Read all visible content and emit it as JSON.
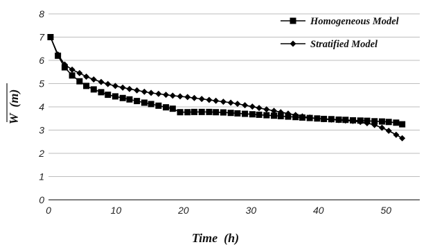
{
  "chart_data": {
    "type": "line",
    "title": "",
    "xlabel": "Time  (h)",
    "ylabel": "W  (m)",
    "xlim": [
      0,
      55
    ],
    "ylim": [
      0,
      8
    ],
    "x_ticks": [
      "0",
      "10",
      "20",
      "30",
      "40",
      "50"
    ],
    "y_ticks": [
      "0",
      "1",
      "2",
      "3",
      "4",
      "5",
      "6",
      "7",
      "8"
    ],
    "grid": "horizontal",
    "legend_position": "top-right",
    "series": [
      {
        "name": "Homogeneous Model",
        "marker": "square",
        "color": "#000000",
        "x": [
          0.3,
          1.4,
          2.4,
          3.5,
          4.6,
          5.6,
          6.7,
          7.8,
          8.8,
          9.9,
          11.0,
          12.0,
          13.1,
          14.2,
          15.2,
          16.3,
          17.4,
          18.4,
          19.5,
          20.6,
          21.6,
          22.7,
          23.8,
          24.8,
          25.9,
          27.0,
          28.0,
          29.1,
          30.2,
          31.2,
          32.3,
          33.4,
          34.4,
          35.5,
          36.6,
          37.6,
          38.7,
          39.8,
          40.8,
          41.9,
          43.0,
          44.0,
          45.1,
          46.2,
          47.2,
          48.3,
          49.4,
          50.4,
          51.5,
          52.4
        ],
        "y": [
          7.0,
          6.2,
          5.7,
          5.35,
          5.1,
          4.9,
          4.75,
          4.63,
          4.52,
          4.45,
          4.38,
          4.32,
          4.25,
          4.18,
          4.12,
          4.05,
          3.98,
          3.92,
          3.77,
          3.77,
          3.78,
          3.78,
          3.78,
          3.77,
          3.76,
          3.74,
          3.72,
          3.7,
          3.68,
          3.66,
          3.64,
          3.62,
          3.6,
          3.58,
          3.56,
          3.54,
          3.52,
          3.5,
          3.48,
          3.47,
          3.45,
          3.44,
          3.42,
          3.41,
          3.4,
          3.38,
          3.37,
          3.35,
          3.32,
          3.25
        ]
      },
      {
        "name": "Stratified Model",
        "marker": "diamond",
        "color": "#000000",
        "x": [
          0.3,
          1.4,
          2.4,
          3.5,
          4.6,
          5.6,
          6.7,
          7.8,
          8.8,
          9.9,
          11.0,
          12.0,
          13.1,
          14.2,
          15.2,
          16.3,
          17.4,
          18.4,
          19.5,
          20.6,
          21.6,
          22.7,
          23.8,
          24.8,
          25.9,
          27.0,
          28.0,
          29.1,
          30.2,
          31.2,
          32.3,
          33.4,
          34.4,
          35.5,
          36.6,
          37.6,
          38.7,
          39.8,
          40.8,
          41.9,
          43.0,
          44.0,
          45.1,
          46.2,
          47.2,
          48.3,
          49.4,
          50.4,
          51.5,
          52.4
        ],
        "y": [
          7.0,
          6.25,
          5.82,
          5.6,
          5.45,
          5.3,
          5.18,
          5.07,
          4.98,
          4.9,
          4.83,
          4.77,
          4.71,
          4.65,
          4.6,
          4.56,
          4.52,
          4.48,
          4.45,
          4.42,
          4.38,
          4.34,
          4.3,
          4.26,
          4.22,
          4.18,
          4.13,
          4.07,
          4.01,
          3.95,
          3.89,
          3.83,
          3.77,
          3.71,
          3.65,
          3.59,
          3.54,
          3.5,
          3.47,
          3.45,
          3.43,
          3.41,
          3.39,
          3.35,
          3.3,
          3.22,
          3.1,
          2.97,
          2.8,
          2.65
        ]
      }
    ]
  }
}
